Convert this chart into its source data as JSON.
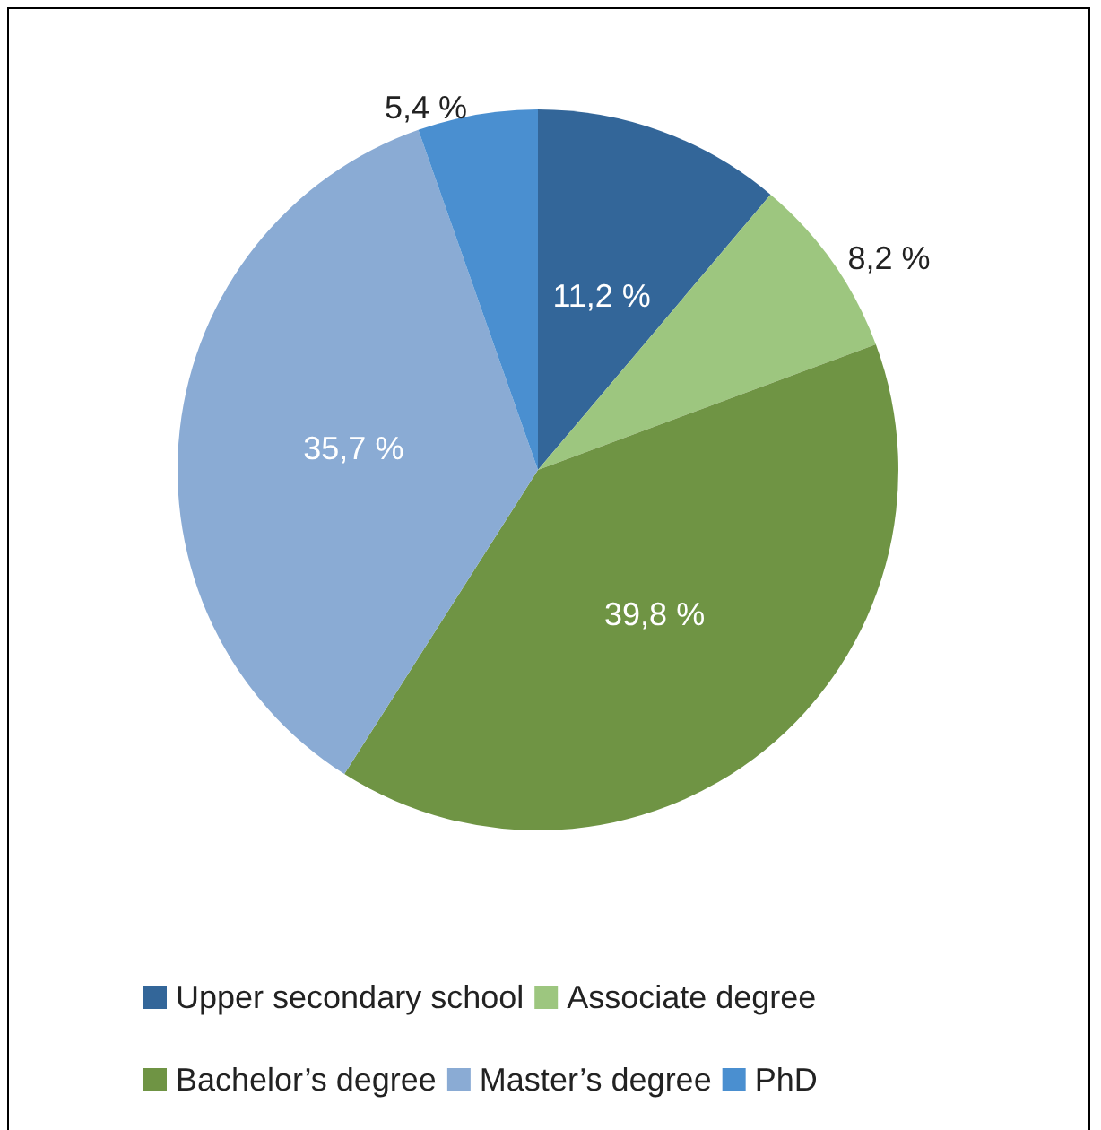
{
  "chart_data": {
    "type": "pie",
    "categories": [
      "Upper secondary school",
      "Associate degree",
      "Bachelor’s degree",
      "Master’s degree",
      "PhD"
    ],
    "values": [
      11.2,
      8.2,
      39.8,
      35.7,
      5.4
    ],
    "value_labels": [
      "11,2 %",
      "8,2 %",
      "39,8 %",
      "35,7 %",
      "5,4 %"
    ],
    "colors": [
      "#336699",
      "#9dc67f",
      "#6f9444",
      "#8aabd4",
      "#4a8fd0"
    ],
    "legend": "bottom"
  }
}
